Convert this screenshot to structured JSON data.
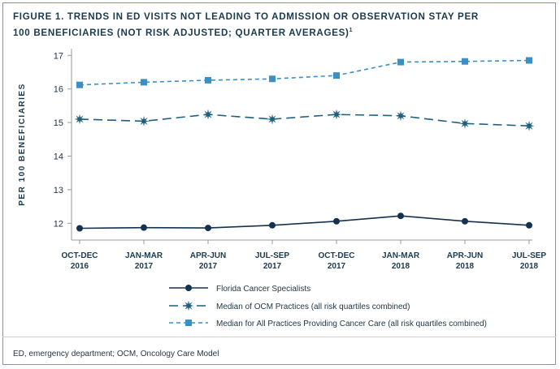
{
  "figure": {
    "label": "FIGURE 1.",
    "title_line1": "TRENDS IN ED VISITS NOT LEADING TO ADMISSION OR OBSERVATION STAY PER",
    "title_line2": "100 BENEFICIARIES (NOT RISK ADJUSTED; QUARTER AVERAGES)",
    "title_sup": "1",
    "footnote": "ED, emergency department; OCM, Oncology Care Model"
  },
  "chart_data": {
    "type": "line",
    "ylabel": "PER 100 BENEFICIARIES",
    "xlabel": "",
    "ylim": [
      11.5,
      17.2
    ],
    "yticks": [
      12,
      13,
      14,
      15,
      16,
      17
    ],
    "grid": false,
    "legend_position": "bottom-center",
    "categories": [
      [
        "OCT-DEC",
        "2016"
      ],
      [
        "JAN-MAR",
        "2017"
      ],
      [
        "APR-JUN",
        "2017"
      ],
      [
        "JUL-SEP",
        "2017"
      ],
      [
        "OCT-DEC",
        "2017"
      ],
      [
        "JAN-MAR",
        "2018"
      ],
      [
        "APR-JUN",
        "2018"
      ],
      [
        "JUL-SEP",
        "2018"
      ]
    ],
    "series": [
      {
        "name": "Florida Cancer Specialists",
        "values": [
          11.85,
          11.87,
          11.86,
          11.94,
          12.06,
          12.22,
          12.06,
          11.94
        ],
        "color": "#12324f",
        "marker": "circle",
        "dash": "solid"
      },
      {
        "name": "Median of OCM Practices (all risk quartiles combined)",
        "values": [
          15.1,
          15.04,
          15.24,
          15.1,
          15.24,
          15.2,
          14.97,
          14.9
        ],
        "color": "#1d5f7c",
        "marker": "star",
        "dash": "long-dash"
      },
      {
        "name": "Median for All Practices Providing Cancer Care (all risk quartiles combined)",
        "values": [
          16.12,
          16.2,
          16.26,
          16.3,
          16.4,
          16.8,
          16.82,
          16.85
        ],
        "color": "#3a8fc4",
        "marker": "square",
        "dash": "short-dash"
      }
    ]
  }
}
